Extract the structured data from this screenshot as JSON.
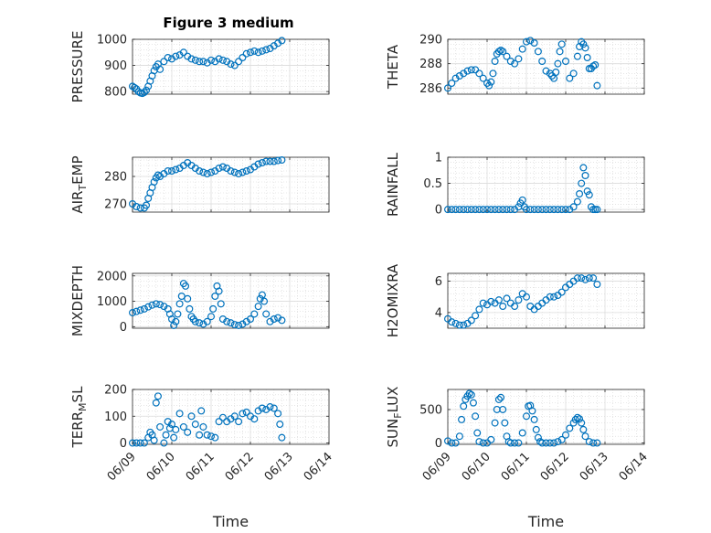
{
  "figure": {
    "title": "Figure 3 medium",
    "background": "#ffffff",
    "marker_color": "#0072BD",
    "grid": true
  },
  "chart_data": [
    {
      "type": "scatter",
      "ylabel": "PRESSURE",
      "xlabel": "",
      "xlim": [
        "06/09",
        "06/14"
      ],
      "xticks": [],
      "ylim": [
        790,
        1000
      ],
      "yticks": [
        800,
        900,
        1000
      ],
      "ytick_labels": [
        "800",
        "900",
        "1000"
      ],
      "x": [
        0,
        0.05,
        0.1,
        0.15,
        0.2,
        0.25,
        0.3,
        0.35,
        0.4,
        0.45,
        0.5,
        0.55,
        0.6,
        0.65,
        0.7,
        0.8,
        0.9,
        1.0,
        1.1,
        1.2,
        1.3,
        1.4,
        1.5,
        1.6,
        1.7,
        1.8,
        1.9,
        2.0,
        2.1,
        2.2,
        2.3,
        2.4,
        2.5,
        2.6,
        2.7,
        2.8,
        2.9,
        3.0,
        3.1,
        3.2,
        3.3,
        3.4,
        3.5,
        3.6,
        3.7,
        3.8
      ],
      "y": [
        820,
        815,
        810,
        800,
        795,
        793,
        797,
        805,
        820,
        840,
        860,
        880,
        895,
        905,
        885,
        915,
        930,
        925,
        935,
        940,
        950,
        935,
        925,
        920,
        915,
        915,
        910,
        920,
        915,
        925,
        920,
        915,
        905,
        900,
        915,
        930,
        945,
        950,
        955,
        950,
        955,
        960,
        965,
        975,
        985,
        995
      ]
    },
    {
      "type": "scatter",
      "ylabel": "THETA",
      "xlabel": "",
      "xlim": [
        "06/09",
        "06/14"
      ],
      "xticks": [],
      "ylim": [
        285.5,
        290
      ],
      "yticks": [
        286,
        288,
        290
      ],
      "ytick_labels": [
        "286",
        "288",
        "290"
      ],
      "x": [
        0,
        0.1,
        0.2,
        0.3,
        0.4,
        0.5,
        0.6,
        0.7,
        0.8,
        0.9,
        1.0,
        1.05,
        1.1,
        1.15,
        1.2,
        1.25,
        1.3,
        1.35,
        1.4,
        1.5,
        1.6,
        1.7,
        1.8,
        1.9,
        2.0,
        2.1,
        2.2,
        2.3,
        2.4,
        2.5,
        2.6,
        2.65,
        2.7,
        2.75,
        2.8,
        2.85,
        2.9,
        3.0,
        3.1,
        3.2,
        3.3,
        3.35,
        3.4,
        3.45,
        3.5,
        3.55,
        3.6,
        3.65,
        3.7,
        3.75,
        3.8
      ],
      "y": [
        286,
        286.4,
        286.8,
        287,
        287.2,
        287.4,
        287.5,
        287.5,
        287.2,
        286.8,
        286.4,
        286.2,
        286.5,
        287.2,
        288.2,
        288.8,
        289,
        289.1,
        289,
        288.6,
        288.2,
        288,
        288.4,
        289.2,
        289.8,
        289.9,
        289.7,
        289,
        288.2,
        287.4,
        287.2,
        287,
        286.8,
        287.3,
        288,
        289,
        289.6,
        288.2,
        286.8,
        287.2,
        288.6,
        289.4,
        289.8,
        289.6,
        289.3,
        288.5,
        287.6,
        287.6,
        287.8,
        287.9,
        286.2
      ]
    },
    {
      "type": "scatter",
      "ylabel": "AIR_TEMP",
      "ylabel_base": "AIR",
      "ylabel_sub": "T",
      "ylabel_rest": "EMP",
      "xlabel": "",
      "xlim": [
        "06/09",
        "06/14"
      ],
      "xticks": [],
      "ylim": [
        267,
        287
      ],
      "yticks": [
        270,
        280
      ],
      "ytick_labels": [
        "270",
        "280"
      ],
      "x": [
        0,
        0.1,
        0.2,
        0.3,
        0.35,
        0.4,
        0.45,
        0.5,
        0.55,
        0.6,
        0.65,
        0.7,
        0.8,
        0.9,
        1.0,
        1.1,
        1.2,
        1.3,
        1.4,
        1.5,
        1.6,
        1.7,
        1.8,
        1.9,
        2.0,
        2.1,
        2.2,
        2.3,
        2.4,
        2.5,
        2.6,
        2.7,
        2.8,
        2.9,
        3.0,
        3.1,
        3.2,
        3.3,
        3.4,
        3.5,
        3.6,
        3.7,
        3.8
      ],
      "y": [
        270,
        269,
        268.5,
        268.5,
        269.5,
        272,
        274,
        276,
        278,
        279.5,
        280.5,
        280,
        281,
        282,
        282,
        282.5,
        283,
        284,
        285,
        284,
        283,
        282,
        281.5,
        281,
        281.5,
        282,
        283,
        283.5,
        283,
        282,
        281.5,
        281,
        281.5,
        282,
        282.5,
        283.5,
        284.5,
        285,
        285.5,
        285.5,
        285.5,
        285.8,
        286
      ]
    },
    {
      "type": "scatter",
      "ylabel": "RAINFALL",
      "xlabel": "",
      "xlim": [
        "06/09",
        "06/14"
      ],
      "xticks": [],
      "ylim": [
        -0.05,
        1
      ],
      "yticks": [
        0,
        0.5,
        1
      ],
      "ytick_labels": [
        "0",
        "0.5",
        "1"
      ],
      "x": [
        0,
        0.1,
        0.2,
        0.3,
        0.4,
        0.5,
        0.6,
        0.7,
        0.8,
        0.9,
        1.0,
        1.1,
        1.2,
        1.3,
        1.4,
        1.5,
        1.6,
        1.7,
        1.8,
        1.85,
        1.9,
        1.95,
        2.0,
        2.1,
        2.2,
        2.3,
        2.4,
        2.5,
        2.6,
        2.7,
        2.8,
        2.9,
        3.0,
        3.1,
        3.2,
        3.3,
        3.35,
        3.4,
        3.45,
        3.5,
        3.55,
        3.6,
        3.65,
        3.7,
        3.75,
        3.8
      ],
      "y": [
        0,
        0,
        0,
        0,
        0,
        0,
        0,
        0,
        0,
        0,
        0,
        0,
        0,
        0,
        0,
        0,
        0,
        0,
        0.05,
        0.12,
        0.18,
        0.05,
        0,
        0,
        0,
        0,
        0,
        0,
        0,
        0,
        0,
        0,
        0,
        0,
        0.05,
        0.15,
        0.3,
        0.5,
        0.8,
        0.65,
        0.35,
        0.28,
        0.05,
        0,
        0,
        0
      ]
    },
    {
      "type": "scatter",
      "ylabel": "MIXDEPTH",
      "xlabel": "",
      "xlim": [
        "06/09",
        "06/14"
      ],
      "xticks": [],
      "ylim": [
        -60,
        2100
      ],
      "yticks": [
        0,
        1000,
        2000
      ],
      "ytick_labels": [
        "0",
        "1000",
        "2000"
      ],
      "x": [
        0,
        0.1,
        0.2,
        0.3,
        0.4,
        0.5,
        0.6,
        0.7,
        0.8,
        0.9,
        0.95,
        1.0,
        1.05,
        1.1,
        1.15,
        1.2,
        1.25,
        1.3,
        1.35,
        1.4,
        1.45,
        1.5,
        1.55,
        1.6,
        1.7,
        1.8,
        1.9,
        2.0,
        2.05,
        2.1,
        2.15,
        2.2,
        2.25,
        2.3,
        2.4,
        2.5,
        2.6,
        2.7,
        2.8,
        2.9,
        3.0,
        3.1,
        3.2,
        3.25,
        3.3,
        3.35,
        3.4,
        3.5,
        3.6,
        3.7,
        3.8
      ],
      "y": [
        550,
        600,
        650,
        700,
        780,
        850,
        900,
        870,
        800,
        700,
        500,
        300,
        50,
        200,
        500,
        900,
        1200,
        1700,
        1600,
        1100,
        700,
        400,
        300,
        200,
        150,
        100,
        200,
        400,
        700,
        1200,
        1600,
        1400,
        900,
        300,
        200,
        150,
        80,
        50,
        100,
        200,
        300,
        500,
        800,
        1100,
        1250,
        1000,
        500,
        200,
        300,
        350,
        250
      ]
    },
    {
      "type": "scatter",
      "ylabel": "H2OMIXRA",
      "xlabel": "",
      "xlim": [
        "06/09",
        "06/14"
      ],
      "xticks": [],
      "ylim": [
        3,
        6.5
      ],
      "yticks": [
        4,
        6
      ],
      "ytick_labels": [
        "4",
        "6"
      ],
      "x": [
        0,
        0.1,
        0.2,
        0.3,
        0.4,
        0.5,
        0.6,
        0.7,
        0.8,
        0.9,
        1.0,
        1.1,
        1.2,
        1.3,
        1.4,
        1.5,
        1.6,
        1.7,
        1.8,
        1.9,
        2.0,
        2.1,
        2.2,
        2.3,
        2.4,
        2.5,
        2.6,
        2.7,
        2.8,
        2.9,
        3.0,
        3.1,
        3.2,
        3.3,
        3.4,
        3.5,
        3.6,
        3.7,
        3.8
      ],
      "y": [
        3.6,
        3.4,
        3.3,
        3.2,
        3.2,
        3.3,
        3.5,
        3.8,
        4.2,
        4.6,
        4.5,
        4.7,
        4.6,
        4.8,
        4.4,
        4.9,
        4.6,
        4.4,
        4.8,
        5.2,
        5.0,
        4.4,
        4.2,
        4.4,
        4.6,
        4.8,
        5.0,
        5.0,
        5.1,
        5.3,
        5.6,
        5.8,
        6.0,
        6.2,
        6.2,
        6.1,
        6.2,
        6.2,
        5.8
      ]
    },
    {
      "type": "scatter",
      "ylabel": "TERR_MSL",
      "ylabel_base": "TERR",
      "ylabel_sub": "M",
      "ylabel_rest": "SL",
      "xlabel": "Time",
      "xlim": [
        "06/09",
        "06/14"
      ],
      "xticks": [
        "06/09",
        "06/10",
        "06/11",
        "06/12",
        "06/13",
        "06/14"
      ],
      "ylim": [
        -5,
        200
      ],
      "yticks": [
        0,
        100,
        200
      ],
      "ytick_labels": [
        "0",
        "100",
        "200"
      ],
      "x": [
        0,
        0.1,
        0.2,
        0.3,
        0.4,
        0.45,
        0.5,
        0.55,
        0.6,
        0.65,
        0.7,
        0.8,
        0.85,
        0.9,
        0.95,
        1.0,
        1.05,
        1.1,
        1.2,
        1.3,
        1.4,
        1.5,
        1.6,
        1.7,
        1.75,
        1.8,
        1.9,
        2.0,
        2.1,
        2.2,
        2.3,
        2.4,
        2.5,
        2.6,
        2.7,
        2.8,
        2.9,
        3.0,
        3.1,
        3.2,
        3.3,
        3.4,
        3.5,
        3.6,
        3.7,
        3.75,
        3.8
      ],
      "y": [
        0,
        0,
        0,
        0,
        20,
        40,
        30,
        10,
        150,
        175,
        60,
        0,
        30,
        80,
        55,
        70,
        20,
        50,
        110,
        60,
        40,
        100,
        70,
        30,
        120,
        60,
        30,
        25,
        20,
        80,
        95,
        80,
        90,
        100,
        80,
        110,
        115,
        100,
        90,
        120,
        130,
        125,
        135,
        130,
        110,
        70,
        20
      ]
    },
    {
      "type": "scatter",
      "ylabel": "SUN_FLUX",
      "ylabel_base": "SUN",
      "ylabel_sub": "F",
      "ylabel_rest": "LUX",
      "xlabel": "Time",
      "xlim": [
        "06/09",
        "06/14"
      ],
      "xticks": [
        "06/09",
        "06/10",
        "06/11",
        "06/12",
        "06/13",
        "06/14"
      ],
      "ylim": [
        -20,
        800
      ],
      "yticks": [
        0,
        500
      ],
      "ytick_labels": [
        "0",
        "500"
      ],
      "x": [
        0,
        0.1,
        0.2,
        0.3,
        0.35,
        0.4,
        0.45,
        0.5,
        0.55,
        0.6,
        0.65,
        0.7,
        0.75,
        0.8,
        0.9,
        1.0,
        1.1,
        1.2,
        1.25,
        1.3,
        1.35,
        1.4,
        1.45,
        1.5,
        1.55,
        1.6,
        1.7,
        1.8,
        1.9,
        2.0,
        2.05,
        2.1,
        2.15,
        2.2,
        2.25,
        2.3,
        2.35,
        2.4,
        2.5,
        2.6,
        2.7,
        2.8,
        2.9,
        3.0,
        3.1,
        3.2,
        3.25,
        3.3,
        3.35,
        3.4,
        3.45,
        3.5,
        3.6,
        3.7,
        3.8
      ],
      "y": [
        30,
        0,
        0,
        100,
        350,
        550,
        650,
        700,
        740,
        720,
        600,
        400,
        150,
        20,
        0,
        0,
        50,
        300,
        500,
        650,
        680,
        500,
        300,
        100,
        20,
        0,
        0,
        0,
        150,
        400,
        550,
        560,
        480,
        350,
        200,
        80,
        20,
        0,
        0,
        0,
        0,
        20,
        50,
        120,
        220,
        300,
        350,
        380,
        360,
        300,
        200,
        100,
        20,
        0,
        0
      ]
    }
  ]
}
